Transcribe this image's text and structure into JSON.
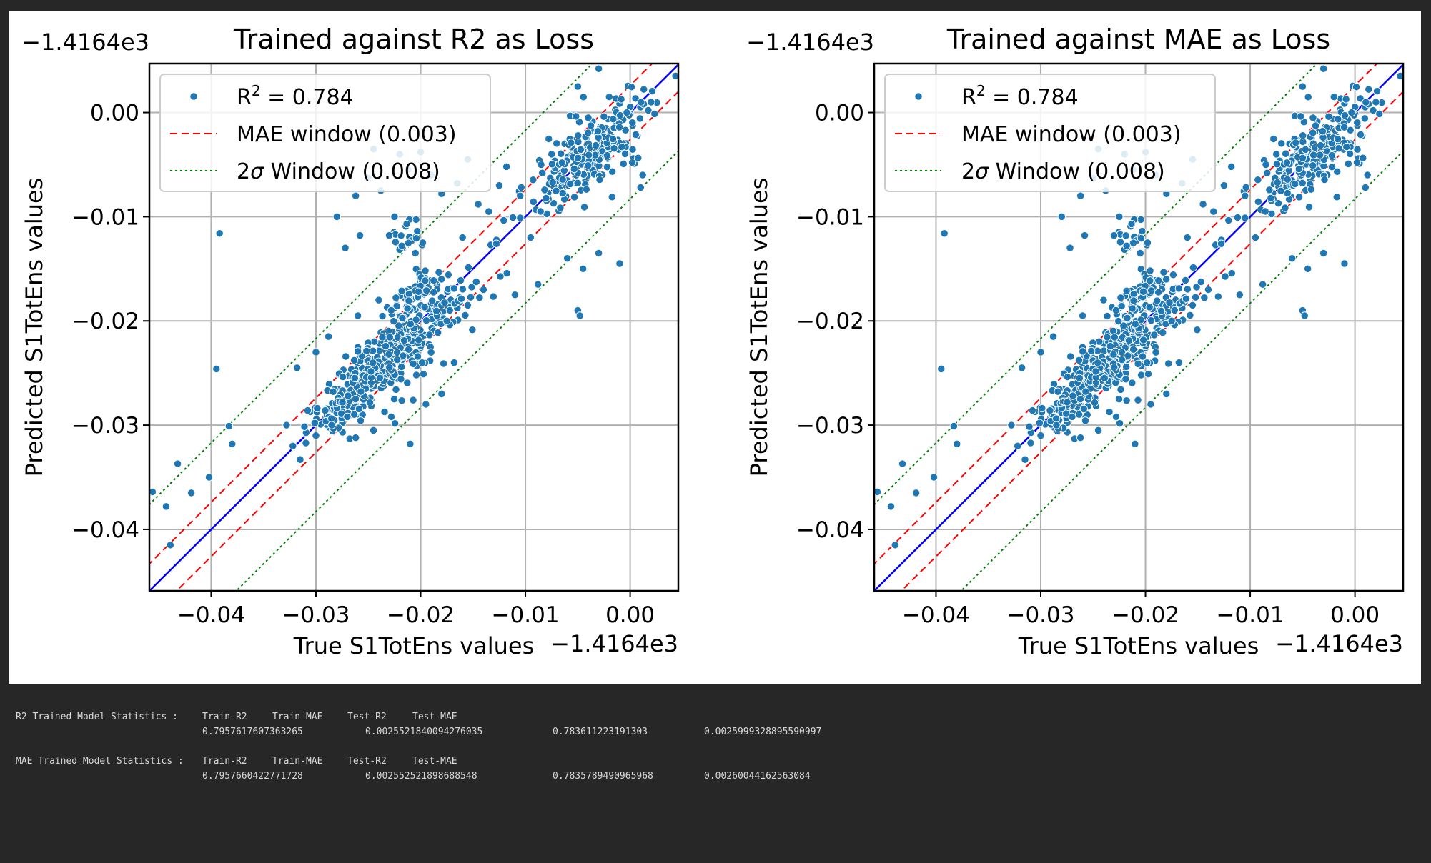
{
  "figure": {
    "background": "#ffffff",
    "page_background": "#272727",
    "charts": [
      {
        "title": "Trained against R2 as Loss",
        "xlabel": "True S1TotEns values",
        "ylabel": "Predicted S1TotEns values",
        "x_offset_label": "−1.4164e3",
        "y_offset_label": "−1.4164e3"
      },
      {
        "title": "Trained against MAE as Loss",
        "xlabel": "True S1TotEns values",
        "ylabel": "Predicted S1TotEns values",
        "x_offset_label": "−1.4164e3",
        "y_offset_label": "−1.4164e3"
      }
    ],
    "legend": [
      {
        "label": "R² = 0.784",
        "style": "scatter",
        "color": "#1f77b4"
      },
      {
        "label": "MAE window (0.003)",
        "style": "dashed",
        "color": "#ff0000"
      },
      {
        "label": "2σ Window (0.008)",
        "style": "dotted",
        "color": "#008000"
      }
    ],
    "x_tick_labels": [
      "−0.04",
      "−0.03",
      "−0.02",
      "−0.01",
      "0.00"
    ],
    "y_tick_labels": [
      "−0.04",
      "−0.03",
      "−0.02",
      "−0.01",
      "0.00"
    ]
  },
  "chart_data": [
    {
      "type": "scatter",
      "title": "Trained against R2 as Loss",
      "xlabel": "True S1TotEns values",
      "ylabel": "Predicted S1TotEns values",
      "axis_offset": -1416.4,
      "xlim": [
        -0.0459,
        0.0046
      ],
      "ylim": [
        -0.0459,
        0.0047
      ],
      "xticks": [
        -0.04,
        -0.03,
        -0.02,
        -0.01,
        0.0
      ],
      "yticks": [
        -0.04,
        -0.03,
        -0.02,
        -0.01,
        0.0
      ],
      "grid": true,
      "legend_position": "upper-left",
      "series": [
        {
          "name": "R² = 0.784",
          "style": "points",
          "color": "#1f77b4"
        },
        {
          "style": "identity-line",
          "color": "#0000ff",
          "offset": 0.0
        },
        {
          "name": "MAE window (0.003)",
          "style": "dashed",
          "color": "#ff0000",
          "offset": 0.0026
        },
        {
          "name": "2σ Window (0.008)",
          "style": "dotted",
          "color": "#008000",
          "offset": 0.0083
        }
      ],
      "points": [
        [
          -0.0456,
          -0.0364
        ],
        [
          -0.0443,
          -0.0378
        ],
        [
          -0.0439,
          -0.0415
        ],
        [
          -0.0432,
          -0.0337
        ],
        [
          -0.0419,
          -0.0365
        ],
        [
          -0.0402,
          -0.035
        ],
        [
          -0.0395,
          -0.0246
        ],
        [
          -0.0392,
          -0.0116
        ],
        [
          -0.0383,
          -0.0301
        ],
        [
          -0.038,
          -0.0318
        ],
        [
          -0.0328,
          -0.03
        ],
        [
          -0.0322,
          -0.032
        ],
        [
          -0.0315,
          -0.0333
        ],
        [
          -0.03,
          -0.031
        ],
        [
          -0.0285,
          -0.03
        ],
        [
          -0.027,
          -0.0292
        ],
        [
          -0.0262,
          -0.0312
        ],
        [
          -0.0245,
          -0.0305
        ],
        [
          -0.0228,
          -0.0292
        ],
        [
          -0.021,
          -0.0318
        ],
        [
          -0.0195,
          -0.028
        ],
        [
          -0.018,
          -0.027
        ],
        [
          -0.0168,
          -0.024
        ],
        [
          -0.0155,
          -0.0185
        ],
        [
          -0.014,
          -0.017
        ],
        [
          -0.011,
          -0.0175
        ],
        [
          -0.0088,
          -0.0165
        ],
        [
          -0.005,
          -0.019
        ],
        [
          -0.0048,
          -0.0195
        ],
        [
          -0.0045,
          -0.015
        ],
        [
          -0.001,
          -0.0145
        ],
        [
          -0.003,
          -0.0135
        ],
        [
          -0.006,
          -0.014
        ],
        [
          -0.0095,
          -0.012
        ],
        [
          -0.0135,
          -0.0095
        ],
        [
          -0.028,
          -0.01
        ],
        [
          -0.0262,
          -0.008
        ],
        [
          -0.025,
          -0.0063
        ],
        [
          -0.0245,
          -0.0035
        ],
        [
          -0.0238,
          -0.0075
        ],
        [
          -0.0225,
          -0.01
        ],
        [
          -0.022,
          -0.004
        ],
        [
          -0.0212,
          -0.0055
        ],
        [
          -0.02,
          -0.0038
        ],
        [
          -0.019,
          -0.006
        ],
        [
          -0.018,
          -0.0078
        ],
        [
          -0.0165,
          -0.0068
        ],
        [
          -0.0155,
          -0.0045
        ],
        [
          -0.0258,
          -0.0118
        ],
        [
          -0.0272,
          -0.013
        ],
        [
          -0.0085,
          -0.005
        ],
        [
          -0.0075,
          -0.004
        ],
        [
          -0.005,
          0.0025
        ],
        [
          -0.003,
          0.0042
        ],
        [
          -0.004,
          -0.0005
        ],
        [
          -0.002,
          0.0015
        ],
        [
          0.0002,
          -0.0048
        ],
        [
          0.0012,
          -0.006
        ],
        [
          0.002,
          0.001
        ],
        [
          0.001,
          -0.0072
        ],
        [
          -0.0105,
          -0.008
        ],
        [
          -0.0118,
          -0.0052
        ],
        [
          -0.0125,
          -0.007
        ],
        [
          -0.0145,
          -0.0088
        ],
        [
          -0.023,
          -0.0118
        ],
        [
          -0.0218,
          -0.0128
        ],
        [
          -0.0205,
          -0.0135
        ],
        [
          -0.0198,
          -0.0125
        ],
        [
          -0.016,
          -0.012
        ],
        [
          -0.0175,
          -0.02
        ],
        [
          -0.0318,
          -0.0245
        ],
        [
          -0.03,
          -0.023
        ],
        [
          -0.0288,
          -0.0215
        ],
        [
          -0.026,
          -0.0195
        ],
        [
          -0.024,
          -0.018
        ]
      ],
      "clusters": [
        {
          "cx": -0.0045,
          "cy": -0.0045,
          "sx": 0.0032,
          "sy": 0.0032,
          "corr": 0.8,
          "n": 260
        },
        {
          "cx": -0.0225,
          "cy": -0.0232,
          "sx": 0.0032,
          "sy": 0.0033,
          "corr": 0.8,
          "n": 360
        },
        {
          "cx": -0.027,
          "cy": -0.0275,
          "sx": 0.0018,
          "sy": 0.0018,
          "corr": 0.85,
          "n": 70
        },
        {
          "cx": -0.0205,
          "cy": -0.0175,
          "sx": 0.0012,
          "sy": 0.0012,
          "corr": 0.75,
          "n": 50
        },
        {
          "cx": -0.0215,
          "cy": -0.012,
          "sx": 0.0009,
          "sy": 0.0008,
          "corr": 0.0,
          "n": 18
        }
      ]
    },
    {
      "type": "scatter",
      "title": "Trained against MAE as Loss",
      "xlabel": "True S1TotEns values",
      "ylabel": "Predicted S1TotEns values",
      "axis_offset": -1416.4,
      "xlim": [
        -0.0459,
        0.0046
      ],
      "ylim": [
        -0.0459,
        0.0047
      ],
      "xticks": [
        -0.04,
        -0.03,
        -0.02,
        -0.01,
        0.0
      ],
      "yticks": [
        -0.04,
        -0.03,
        -0.02,
        -0.01,
        0.0
      ],
      "grid": true,
      "legend_position": "upper-left",
      "series": [
        {
          "name": "R² = 0.784",
          "style": "points",
          "color": "#1f77b4"
        },
        {
          "style": "identity-line",
          "color": "#0000ff",
          "offset": 0.0
        },
        {
          "name": "MAE window (0.003)",
          "style": "dashed",
          "color": "#ff0000",
          "offset": 0.0026
        },
        {
          "name": "2σ Window (0.008)",
          "style": "dotted",
          "color": "#008000",
          "offset": 0.0083
        }
      ],
      "points": [
        [
          -0.0456,
          -0.0364
        ],
        [
          -0.0443,
          -0.0378
        ],
        [
          -0.0439,
          -0.0415
        ],
        [
          -0.0432,
          -0.0337
        ],
        [
          -0.0419,
          -0.0365
        ],
        [
          -0.0402,
          -0.035
        ],
        [
          -0.0395,
          -0.0246
        ],
        [
          -0.0392,
          -0.0116
        ],
        [
          -0.0383,
          -0.0301
        ],
        [
          -0.038,
          -0.0318
        ],
        [
          -0.0328,
          -0.03
        ],
        [
          -0.0322,
          -0.032
        ],
        [
          -0.0315,
          -0.0333
        ],
        [
          -0.03,
          -0.031
        ],
        [
          -0.0285,
          -0.03
        ],
        [
          -0.027,
          -0.0292
        ],
        [
          -0.0262,
          -0.0312
        ],
        [
          -0.0245,
          -0.0305
        ],
        [
          -0.0228,
          -0.0292
        ],
        [
          -0.021,
          -0.0318
        ],
        [
          -0.0195,
          -0.028
        ],
        [
          -0.018,
          -0.027
        ],
        [
          -0.0168,
          -0.024
        ],
        [
          -0.0155,
          -0.0185
        ],
        [
          -0.014,
          -0.017
        ],
        [
          -0.011,
          -0.0175
        ],
        [
          -0.0088,
          -0.0165
        ],
        [
          -0.005,
          -0.019
        ],
        [
          -0.0048,
          -0.0195
        ],
        [
          -0.0045,
          -0.015
        ],
        [
          -0.001,
          -0.0145
        ],
        [
          -0.003,
          -0.0135
        ],
        [
          -0.006,
          -0.014
        ],
        [
          -0.0095,
          -0.012
        ],
        [
          -0.0135,
          -0.0095
        ],
        [
          -0.028,
          -0.01
        ],
        [
          -0.0262,
          -0.008
        ],
        [
          -0.025,
          -0.0063
        ],
        [
          -0.0245,
          -0.0035
        ],
        [
          -0.0238,
          -0.0075
        ],
        [
          -0.0225,
          -0.01
        ],
        [
          -0.022,
          -0.004
        ],
        [
          -0.0212,
          -0.0055
        ],
        [
          -0.02,
          -0.0038
        ],
        [
          -0.019,
          -0.006
        ],
        [
          -0.018,
          -0.0078
        ],
        [
          -0.0165,
          -0.0068
        ],
        [
          -0.0155,
          -0.0045
        ],
        [
          -0.0258,
          -0.0118
        ],
        [
          -0.0272,
          -0.013
        ],
        [
          -0.0085,
          -0.005
        ],
        [
          -0.0075,
          -0.004
        ],
        [
          -0.005,
          0.0025
        ],
        [
          -0.003,
          0.0042
        ],
        [
          -0.004,
          -0.0005
        ],
        [
          -0.002,
          0.0015
        ],
        [
          0.0002,
          -0.0048
        ],
        [
          0.0012,
          -0.006
        ],
        [
          0.002,
          0.001
        ],
        [
          0.001,
          -0.0072
        ],
        [
          -0.0105,
          -0.008
        ],
        [
          -0.0118,
          -0.0052
        ],
        [
          -0.0125,
          -0.007
        ],
        [
          -0.0145,
          -0.0088
        ],
        [
          -0.023,
          -0.0118
        ],
        [
          -0.0218,
          -0.0128
        ],
        [
          -0.0205,
          -0.0135
        ],
        [
          -0.0198,
          -0.0125
        ],
        [
          -0.016,
          -0.012
        ],
        [
          -0.0175,
          -0.02
        ],
        [
          -0.0318,
          -0.0245
        ],
        [
          -0.03,
          -0.023
        ],
        [
          -0.0288,
          -0.0215
        ],
        [
          -0.026,
          -0.0195
        ],
        [
          -0.024,
          -0.018
        ]
      ],
      "clusters": [
        {
          "cx": -0.0045,
          "cy": -0.0045,
          "sx": 0.0032,
          "sy": 0.0032,
          "corr": 0.8,
          "n": 260
        },
        {
          "cx": -0.0225,
          "cy": -0.0232,
          "sx": 0.0032,
          "sy": 0.0033,
          "corr": 0.8,
          "n": 360
        },
        {
          "cx": -0.027,
          "cy": -0.0275,
          "sx": 0.0018,
          "sy": 0.0018,
          "corr": 0.85,
          "n": 70
        },
        {
          "cx": -0.0205,
          "cy": -0.0175,
          "sx": 0.0012,
          "sy": 0.0012,
          "corr": 0.75,
          "n": 50
        },
        {
          "cx": -0.0215,
          "cy": -0.012,
          "sx": 0.0009,
          "sy": 0.0008,
          "corr": 0.0,
          "n": 18
        }
      ]
    }
  ],
  "stats": {
    "r2_model": {
      "label": "R2 Trained Model Statistics :",
      "headers": [
        "Train-R2",
        "Train-MAE",
        "Test-R2",
        "Test-MAE"
      ],
      "values": [
        "0.7957617607363265",
        "0.0025521840094276035",
        "0.783611223191303",
        "0.0025999328895590997"
      ]
    },
    "mae_model": {
      "label": "MAE Trained Model Statistics :",
      "headers": [
        "Train-R2",
        "Train-MAE",
        "Test-R2",
        "Test-MAE"
      ],
      "values": [
        "0.7957660422771728",
        "0.002552521898688548",
        "0.7835789490965968",
        "0.00260044162563084"
      ]
    }
  }
}
